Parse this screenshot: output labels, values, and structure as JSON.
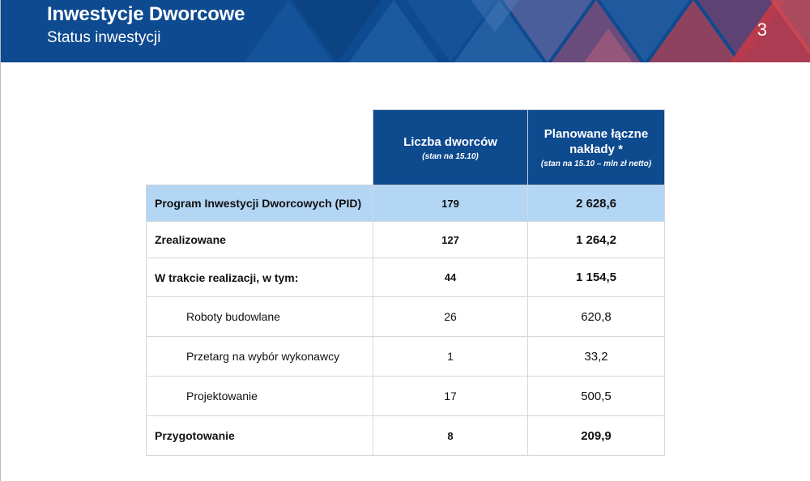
{
  "header": {
    "title": "Inwestycje Dworcowe",
    "subtitle": "Status inwestycji",
    "page_number": "3"
  },
  "colors": {
    "header_blue": "#0e4a8f",
    "header_red": "#c83a46",
    "table_header_blue": "#0d4a8e",
    "highlight_row": "#b4d6f5"
  },
  "table": {
    "headers": {
      "count": "Liczba dworców",
      "count_note": "(stan na 15.10)",
      "budget": "Planowane łączne nakłady *",
      "budget_note": "(stan na 15.10 – mln zł netto)"
    },
    "rows": [
      {
        "label": "Program Inwestycji Dworcowych (PID)",
        "count": "179",
        "budget": "2 628,6"
      },
      {
        "label": "Zrealizowane",
        "count": "127",
        "budget": "1 264,2"
      },
      {
        "label": "W trakcie realizacji, w tym:",
        "count": "44",
        "budget": "1 154,5"
      },
      {
        "label": "Roboty budowlane",
        "count": "26",
        "budget": "620,8"
      },
      {
        "label": "Przetarg na wybór wykonawcy",
        "count": "1",
        "budget": "33,2"
      },
      {
        "label": "Projektowanie",
        "count": "17",
        "budget": "500,5"
      },
      {
        "label": "Przygotowanie",
        "count": "8",
        "budget": "209,9"
      }
    ]
  }
}
